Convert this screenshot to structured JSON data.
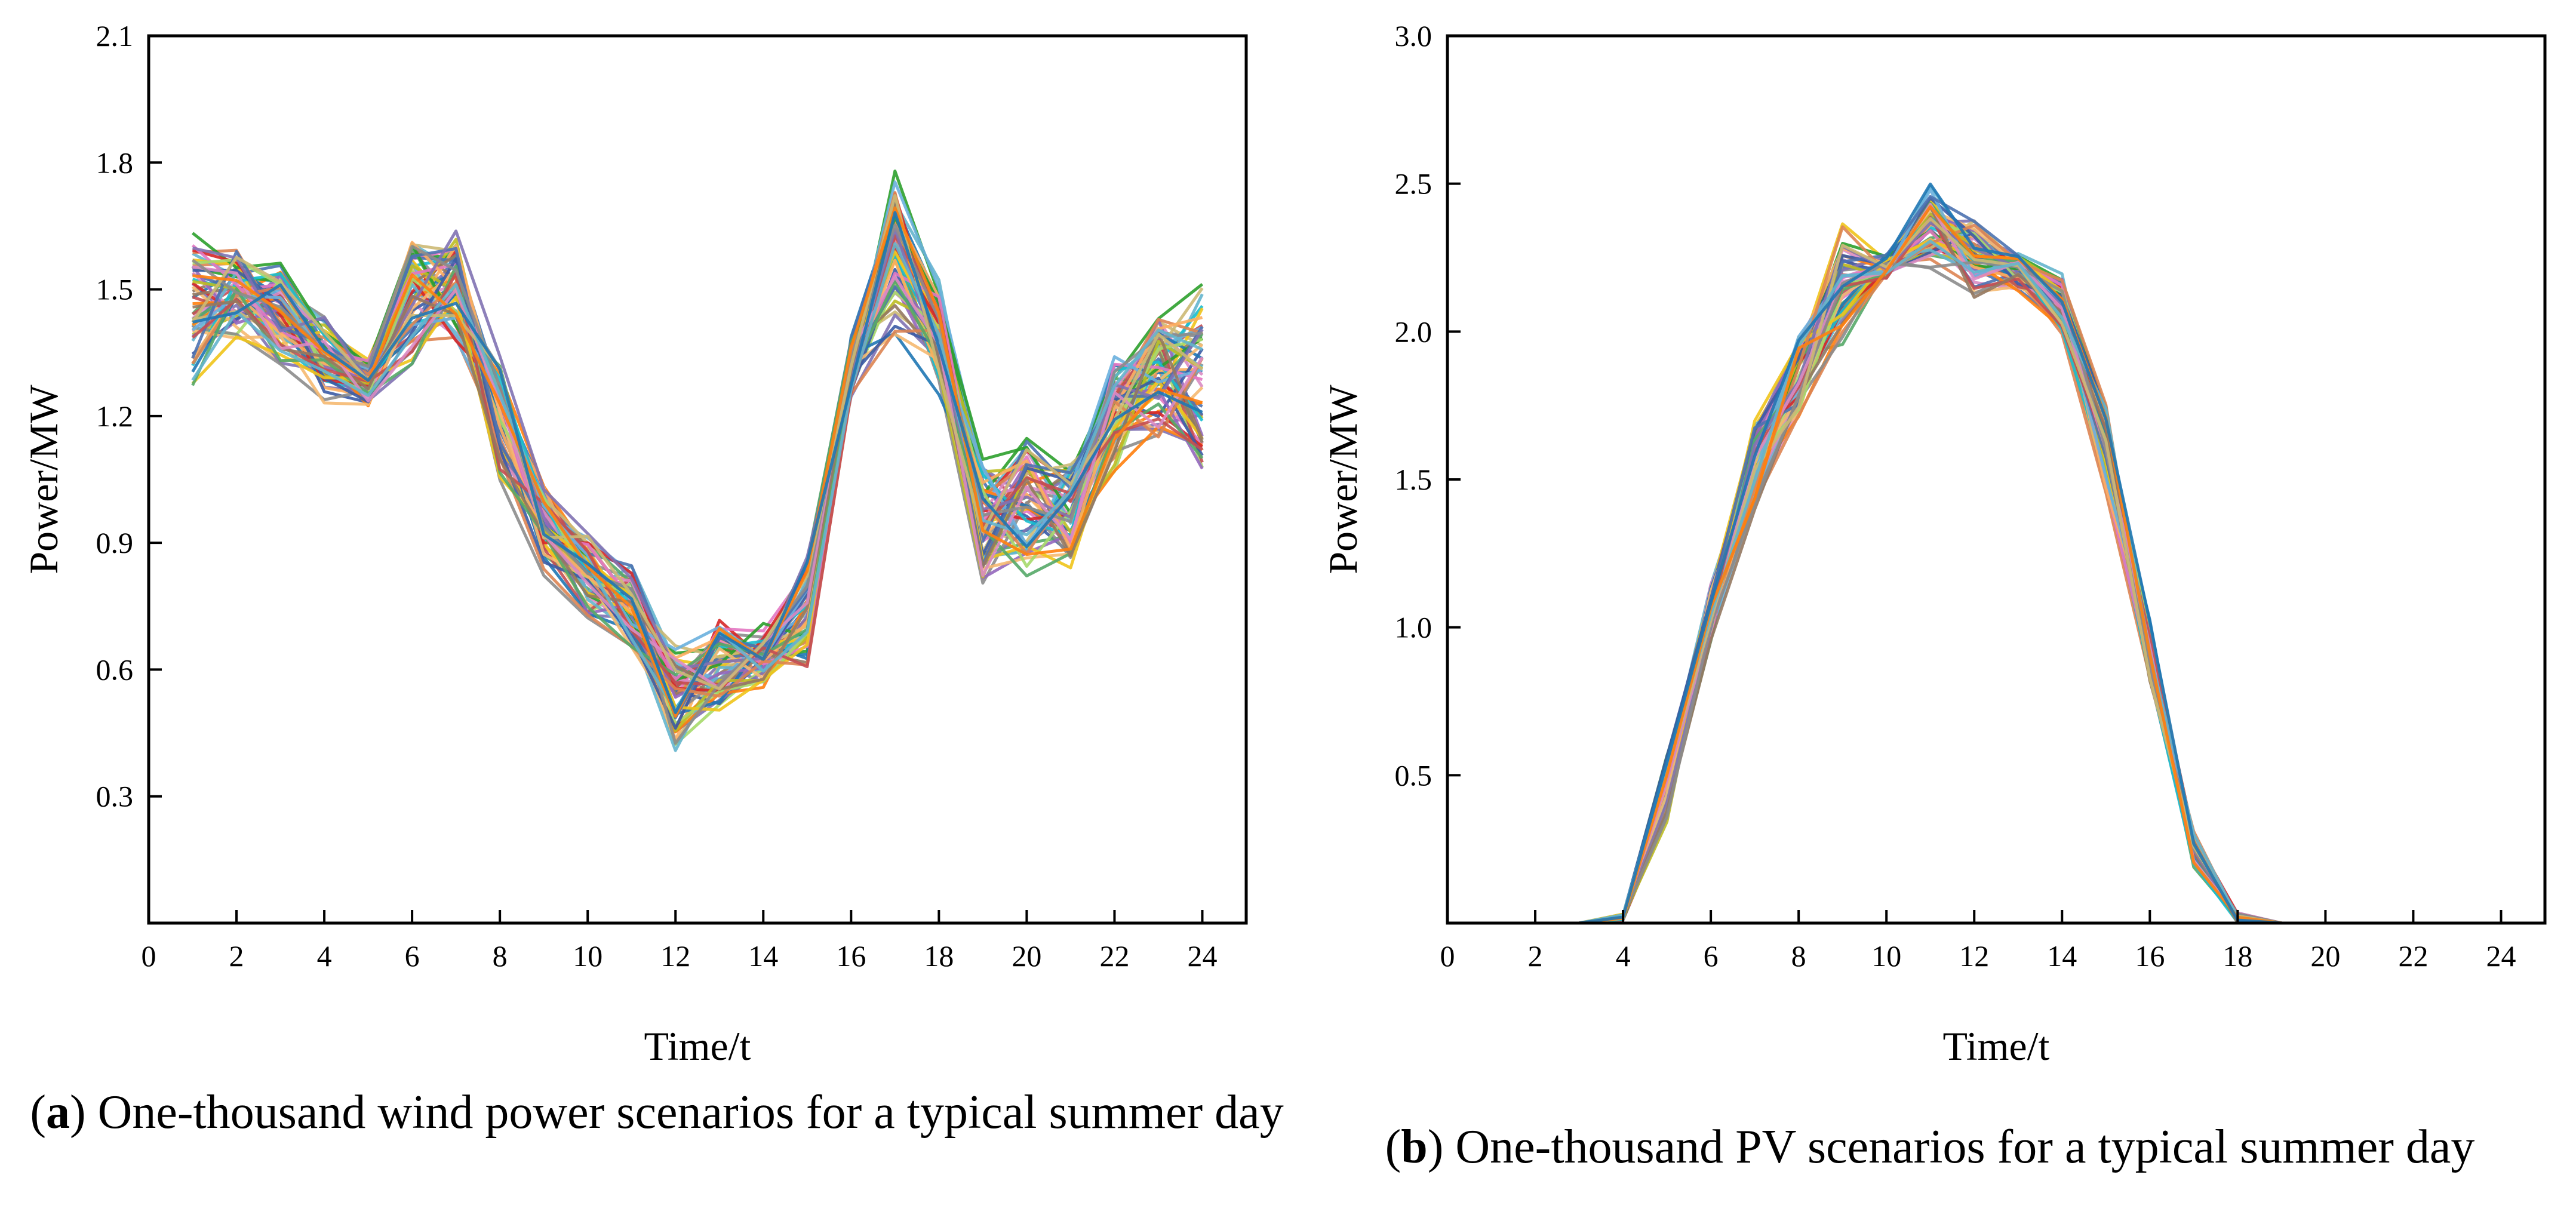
{
  "chart_data": [
    {
      "type": "line",
      "panel": "a",
      "title": "One-thousand wind power scenarios for a typical summer day",
      "caption_letter": "a",
      "caption_text": ") One-thousand wind power scenarios for a typical summer day",
      "xlabel": "Time/t",
      "ylabel": "Power/MW",
      "xlim": [
        0,
        25
      ],
      "ylim": [
        0.0,
        2.1
      ],
      "xticks": [
        "0",
        "2",
        "4",
        "6",
        "8",
        "10",
        "12",
        "14",
        "16",
        "18",
        "20",
        "22",
        "24"
      ],
      "yticks": [
        "0.3",
        "0.6",
        "0.9",
        "1.2",
        "1.5",
        "1.8",
        "2.1"
      ],
      "x": [
        1,
        2,
        3,
        4,
        5,
        6,
        7,
        8,
        9,
        10,
        11,
        12,
        13,
        14,
        15,
        16,
        17,
        18,
        19,
        20,
        21,
        22,
        23,
        24
      ],
      "central_profile": [
        1.45,
        1.5,
        1.45,
        1.33,
        1.28,
        1.48,
        1.48,
        1.2,
        0.95,
        0.82,
        0.75,
        0.52,
        0.62,
        0.63,
        0.72,
        1.32,
        1.58,
        1.38,
        0.95,
        0.98,
        0.97,
        1.2,
        1.3,
        1.28
      ],
      "scenario_spread": [
        0.18,
        0.12,
        0.12,
        0.1,
        0.06,
        0.17,
        0.15,
        0.14,
        0.12,
        0.1,
        0.1,
        0.14,
        0.11,
        0.08,
        0.15,
        0.07,
        0.19,
        0.14,
        0.15,
        0.16,
        0.13,
        0.14,
        0.16,
        0.22
      ],
      "n_scenarios": 1000,
      "n_drawn": 60
    },
    {
      "type": "line",
      "panel": "b",
      "title": "One-thousand PV scenarios for a typical summer day",
      "caption_letter": "b",
      "caption_text": ") One-thousand PV scenarios for a typical summer day",
      "xlabel": "Time/t",
      "ylabel": "Power/MW",
      "xlim": [
        0,
        25
      ],
      "ylim": [
        0.0,
        3.0
      ],
      "xticks": [
        "0",
        "2",
        "4",
        "6",
        "8",
        "10",
        "12",
        "14",
        "16",
        "18",
        "20",
        "22",
        "24"
      ],
      "yticks": [
        "0.5",
        "1.0",
        "1.5",
        "2.0",
        "2.5",
        "3.0"
      ],
      "x": [
        1,
        2,
        3,
        4,
        5,
        6,
        7,
        8,
        9,
        10,
        11,
        12,
        13,
        14,
        15,
        16,
        17,
        18,
        19,
        20,
        21,
        22,
        23,
        24
      ],
      "central_profile": [
        0,
        0,
        0,
        0.02,
        0.45,
        1.05,
        1.55,
        1.85,
        2.15,
        2.22,
        2.35,
        2.25,
        2.2,
        2.1,
        1.6,
        0.9,
        0.25,
        0.02,
        0,
        0,
        0,
        0,
        0,
        0
      ],
      "scenario_spread": [
        0,
        0,
        0,
        0.01,
        0.12,
        0.1,
        0.15,
        0.18,
        0.2,
        0.04,
        0.15,
        0.13,
        0.07,
        0.1,
        0.15,
        0.12,
        0.06,
        0.02,
        0,
        0,
        0,
        0,
        0,
        0
      ],
      "n_scenarios": 1000,
      "n_drawn": 60
    }
  ],
  "palette": [
    "#4c72b0",
    "#dd8452",
    "#55a868",
    "#c44e52",
    "#8172b3",
    "#937860",
    "#da8bc3",
    "#8c8c8c",
    "#ccb974",
    "#64b5cd",
    "#ff7f0e",
    "#1f77b4",
    "#2ca02c",
    "#d62728",
    "#9467bd",
    "#17becf",
    "#bcbd22",
    "#e377c2",
    "#f5b971",
    "#a6d96a",
    "#fdae61",
    "#3b5ba5",
    "#f0c419",
    "#6ab0de"
  ]
}
